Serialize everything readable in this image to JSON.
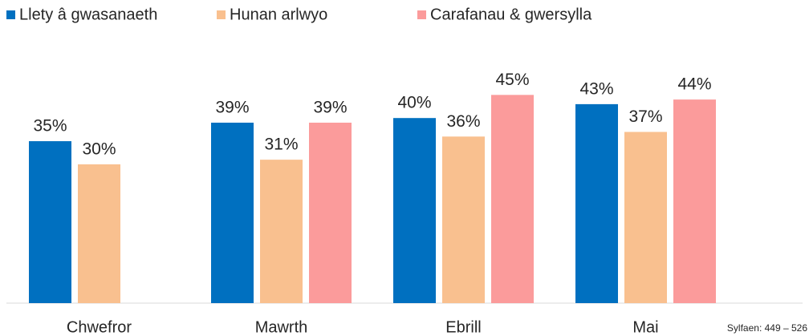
{
  "chart_data": {
    "type": "bar",
    "categories": [
      "Chwefror",
      "Mawrth",
      "Ebrill",
      "Mai"
    ],
    "series": [
      {
        "name": "Llety â gwasanaeth",
        "color": "#0070c0",
        "values": [
          35,
          39,
          40,
          43
        ],
        "value_labels": [
          "35%",
          "39%",
          "40%",
          "43%"
        ]
      },
      {
        "name": "Hunan arlwyo",
        "color": "#f9c08f",
        "values": [
          30,
          31,
          36,
          37
        ],
        "value_labels": [
          "30%",
          "31%",
          "36%",
          "37%"
        ]
      },
      {
        "name": "Carafanau & gwersylla",
        "color": "#fb9b9b",
        "values": [
          null,
          39,
          45,
          44
        ],
        "value_labels": [
          null,
          "39%",
          "45%",
          "44%"
        ]
      }
    ],
    "annotation": "Sylfaen: 449 – 526"
  }
}
